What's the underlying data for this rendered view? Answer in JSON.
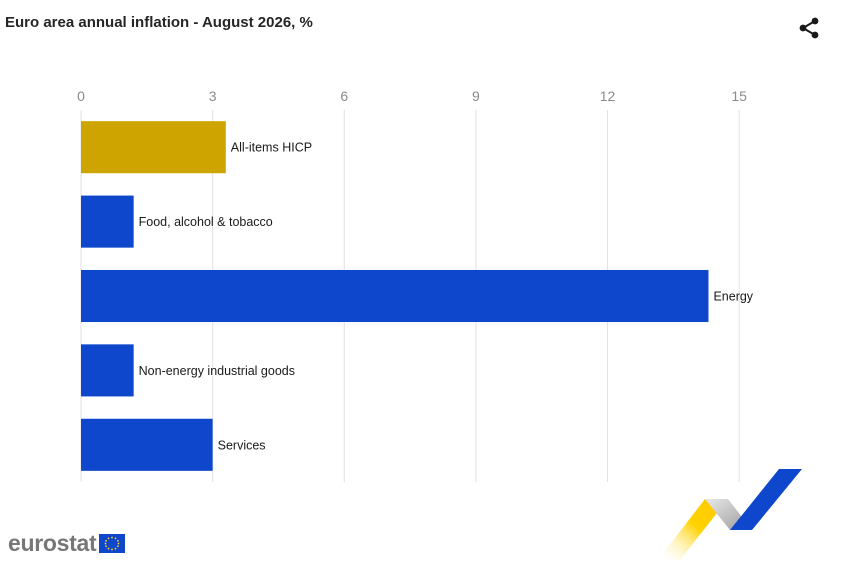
{
  "header": {
    "title": "Euro area annual inflation - August 2026, %",
    "share_icon": "share-icon"
  },
  "colors": {
    "highlight": "#cda400",
    "bar": "#0e47cb",
    "grid": "#e2e2e2",
    "tick_text": "#8a8a8a"
  },
  "chart_data": {
    "type": "bar",
    "orientation": "horizontal",
    "title": "Euro area annual inflation - August 2026, %",
    "categories": [
      "All-items HICP",
      "Food, alcohol & tobacco",
      "Energy",
      "Non-energy industrial goods",
      "Services"
    ],
    "values": [
      3.3,
      1.2,
      14.3,
      1.2,
      3.0
    ],
    "highlighted_category": "All-items HICP",
    "xlim": [
      0,
      16.5
    ],
    "xticks": [
      0,
      3,
      6,
      9,
      12,
      15
    ],
    "xtick_labels": [
      "0",
      "3",
      "6",
      "9",
      "12",
      "15"
    ],
    "x_axis_position": "top",
    "grid": true,
    "legend": "none"
  },
  "footer": {
    "logo_text": "eurostat",
    "flag_icon": "eu-flag-icon"
  }
}
